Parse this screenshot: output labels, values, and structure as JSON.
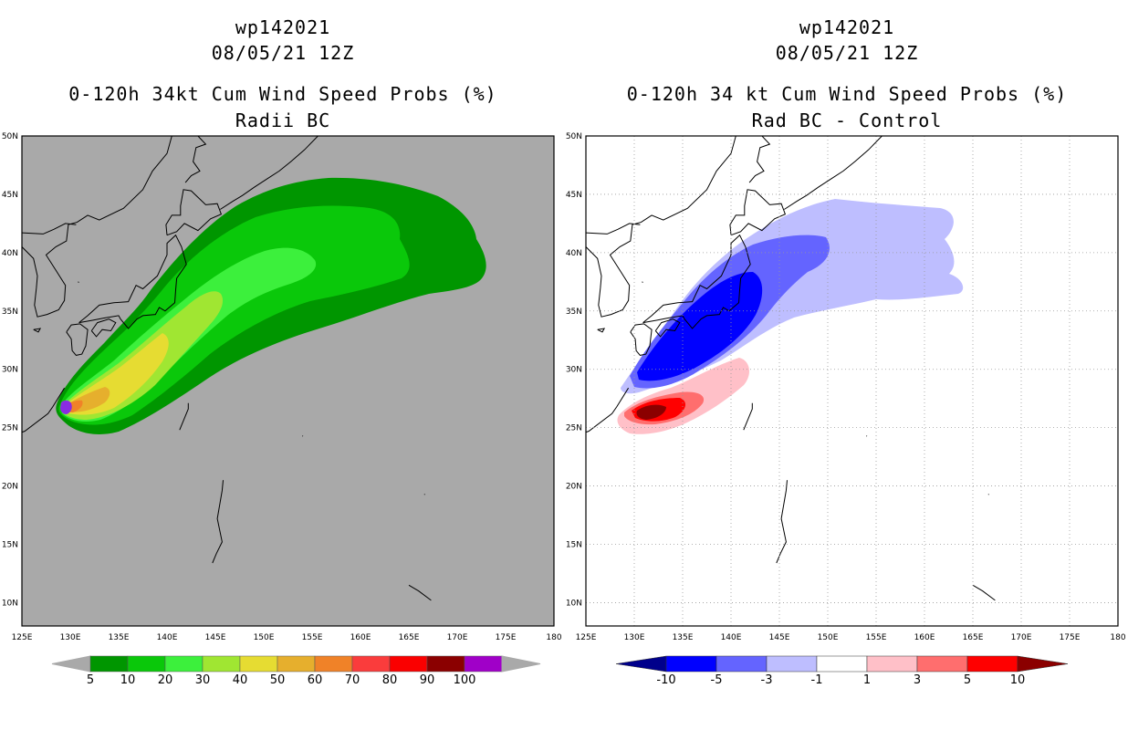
{
  "left_panel": {
    "storm": "wp142021",
    "datetime": "08/05/21 12Z",
    "title": "0-120h 34kt Cum Wind Speed Probs (%)",
    "subtitle": "Radii BC",
    "background": "#a9a9a9",
    "colorbar": {
      "labels": [
        "5",
        "10",
        "20",
        "30",
        "40",
        "50",
        "60",
        "70",
        "80",
        "90",
        "100"
      ],
      "colors": [
        "#009600",
        "#0ac80a",
        "#3cf03c",
        "#a0e632",
        "#e6dc32",
        "#e6af2d",
        "#f08228",
        "#fa3c3c",
        "#fa0000",
        "#8b0000",
        "#a000c8"
      ]
    }
  },
  "right_panel": {
    "storm": "wp142021",
    "datetime": "08/05/21 12Z",
    "title": "0-120h 34 kt Cum Wind Speed Probs (%)",
    "subtitle": "Rad BC - Control",
    "background": "#ffffff",
    "colorbar": {
      "labels": [
        "-10",
        "-5",
        "-3",
        "-1",
        "1",
        "3",
        "5",
        "10"
      ],
      "colors": [
        "#00008b",
        "#0000ff",
        "#6464ff",
        "#bebeff",
        "#ffffff",
        "#ffc0c8",
        "#ff6e6e",
        "#ff0000",
        "#8b0000"
      ]
    }
  },
  "axes": {
    "lon_labels": [
      "125E",
      "130E",
      "135E",
      "140E",
      "145E",
      "150E",
      "155E",
      "160E",
      "165E",
      "170E",
      "175E",
      "180"
    ],
    "lat_labels": [
      "50N",
      "45N",
      "40N",
      "35N",
      "30N",
      "25N",
      "20N",
      "15N",
      "10N"
    ]
  }
}
